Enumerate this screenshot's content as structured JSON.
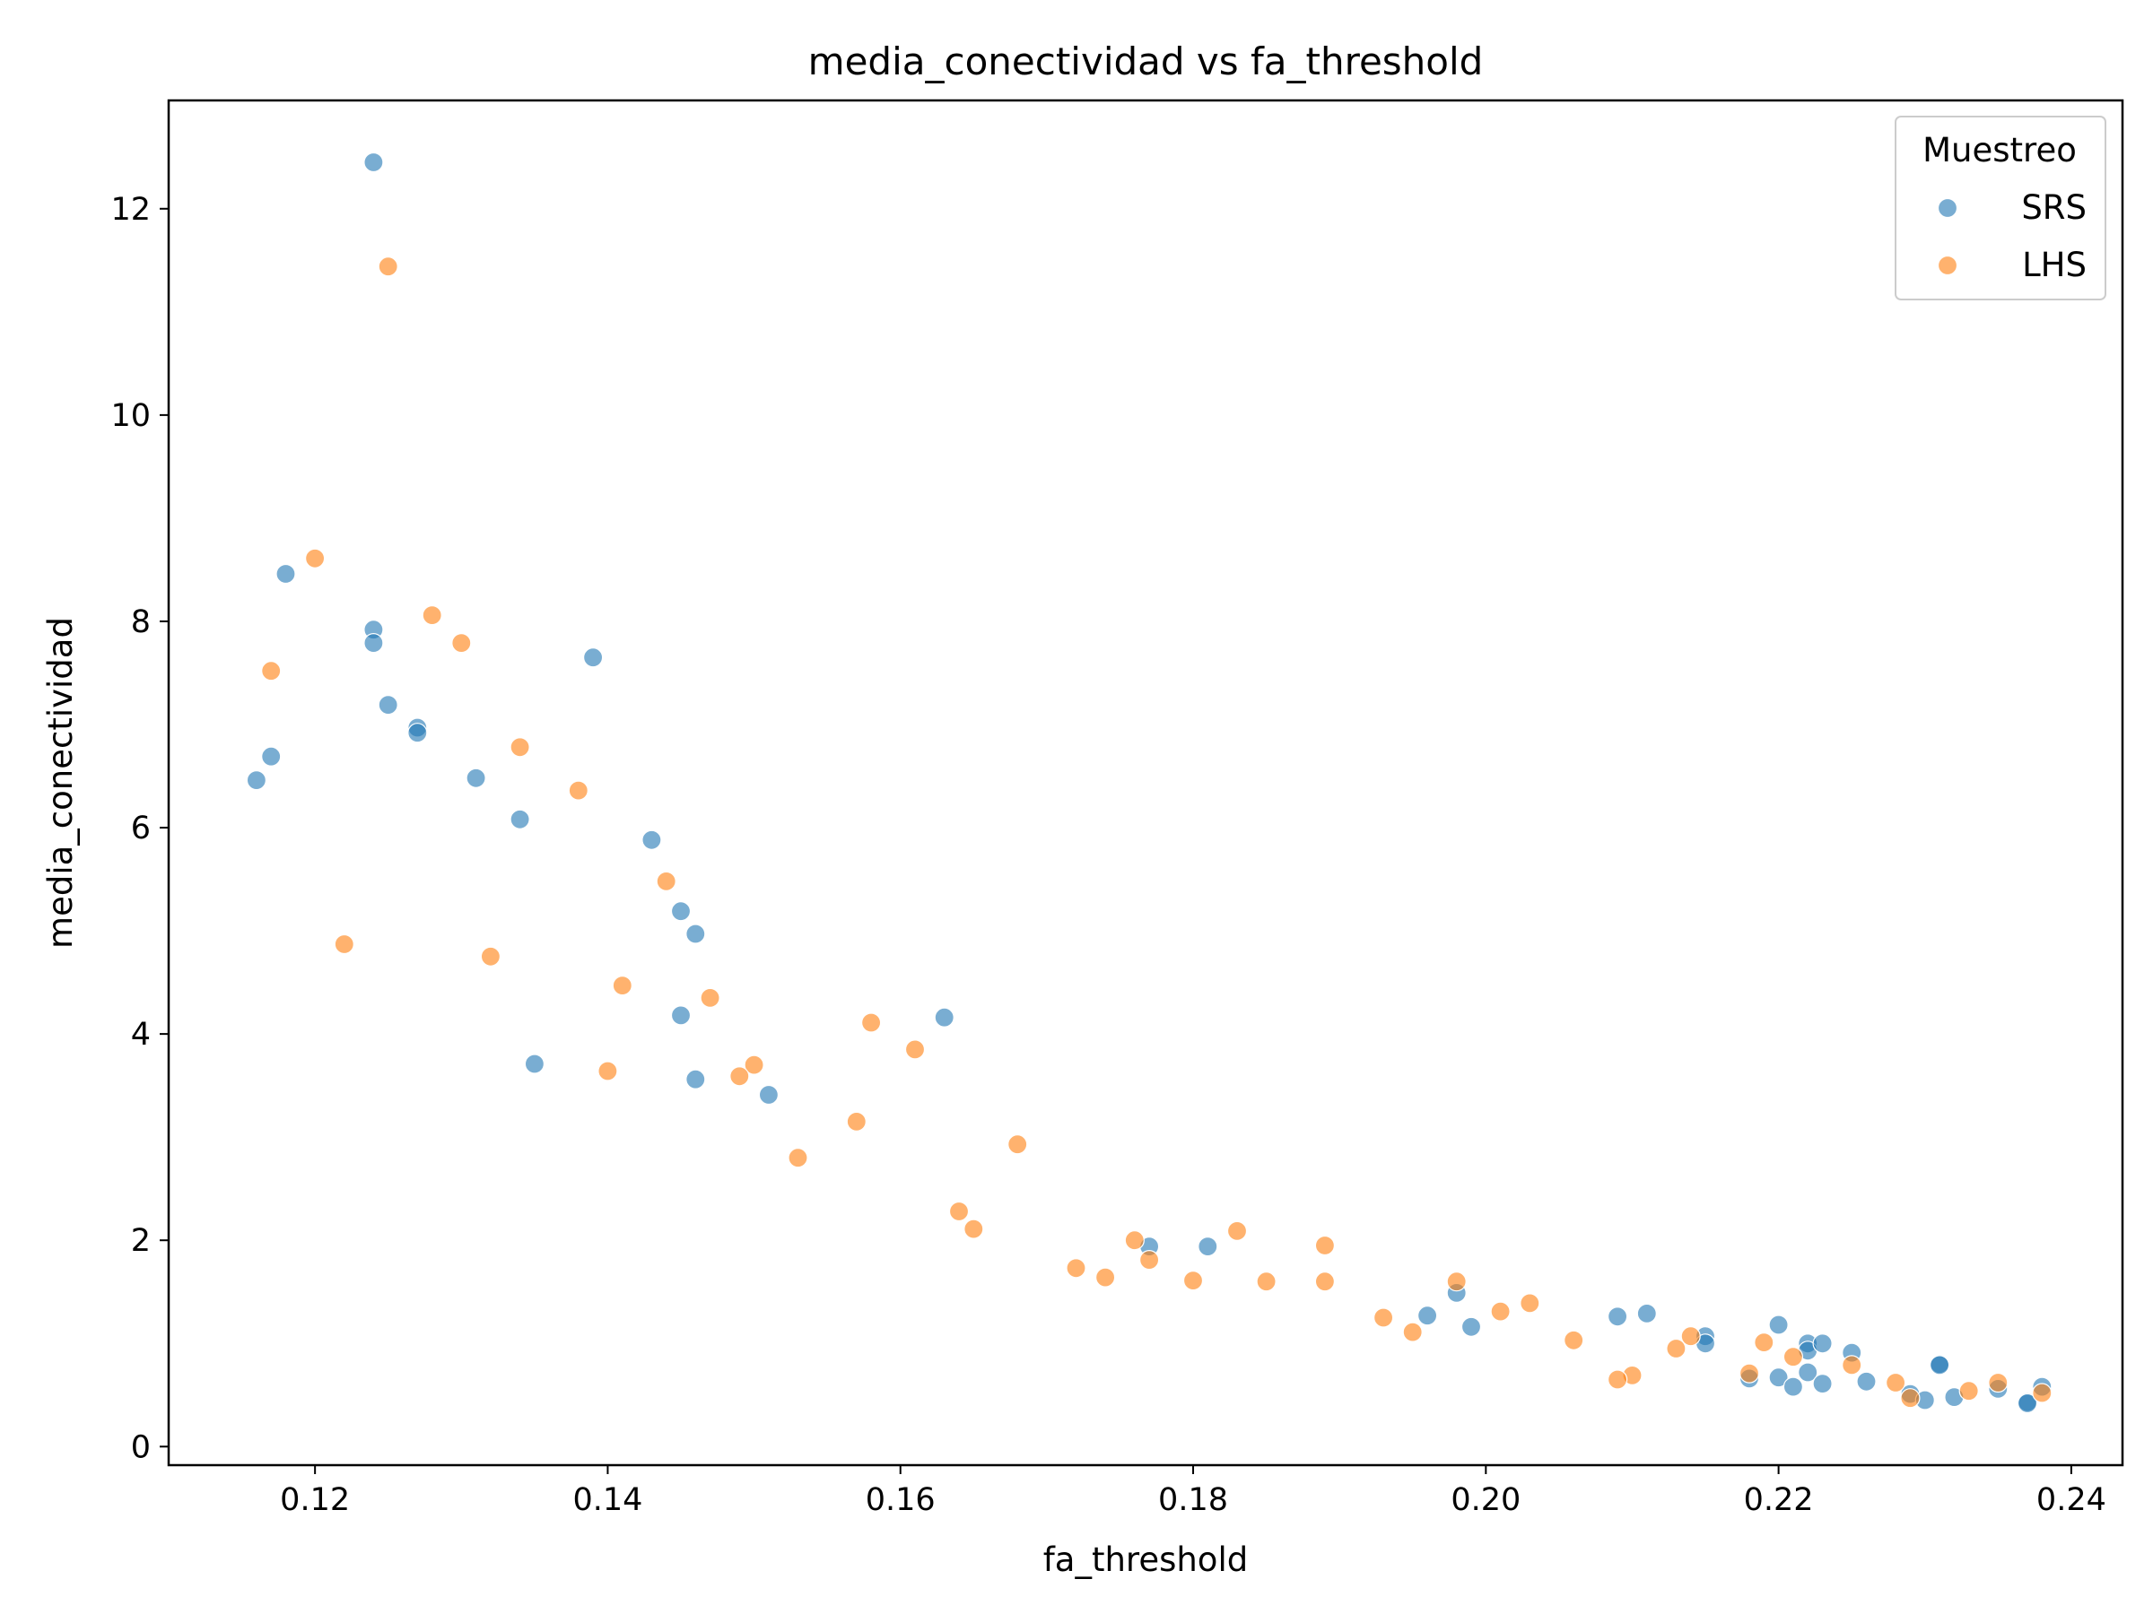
{
  "chart_data": {
    "type": "scatter",
    "title": "media_conectividad vs fa_threshold",
    "xlabel": "fa_threshold",
    "ylabel": "media_conectividad",
    "xlim": [
      0.11,
      0.2435
    ],
    "ylim": [
      -0.18,
      13.05
    ],
    "x_ticks": [
      0.12,
      0.14,
      0.16,
      0.18,
      0.2,
      0.22,
      0.24
    ],
    "x_tick_labels": [
      "0.12",
      "0.14",
      "0.16",
      "0.18",
      "0.20",
      "0.22",
      "0.24"
    ],
    "y_ticks": [
      0,
      2,
      4,
      6,
      8,
      10,
      12
    ],
    "y_tick_labels": [
      "0",
      "2",
      "4",
      "6",
      "8",
      "10",
      "12"
    ],
    "grid": false,
    "legend": {
      "title": "Muestreo",
      "placement": "top-right"
    },
    "series": [
      {
        "name": "SRS",
        "color": "#1f77b4",
        "points": [
          [
            0.124,
            12.45
          ],
          [
            0.118,
            8.46
          ],
          [
            0.124,
            7.92
          ],
          [
            0.124,
            7.79
          ],
          [
            0.139,
            7.65
          ],
          [
            0.125,
            7.19
          ],
          [
            0.127,
            6.97
          ],
          [
            0.127,
            6.92
          ],
          [
            0.117,
            6.69
          ],
          [
            0.131,
            6.48
          ],
          [
            0.116,
            6.46
          ],
          [
            0.134,
            6.08
          ],
          [
            0.143,
            5.88
          ],
          [
            0.145,
            5.19
          ],
          [
            0.146,
            4.97
          ],
          [
            0.145,
            4.18
          ],
          [
            0.163,
            4.16
          ],
          [
            0.135,
            3.71
          ],
          [
            0.146,
            3.56
          ],
          [
            0.151,
            3.41
          ],
          [
            0.177,
            1.94
          ],
          [
            0.181,
            1.94
          ],
          [
            0.198,
            1.49
          ],
          [
            0.196,
            1.27
          ],
          [
            0.199,
            1.16
          ],
          [
            0.209,
            1.26
          ],
          [
            0.211,
            1.29
          ],
          [
            0.215,
            1.07
          ],
          [
            0.215,
            1.0
          ],
          [
            0.22,
            1.18
          ],
          [
            0.222,
            1.0
          ],
          [
            0.222,
            0.93
          ],
          [
            0.223,
            1.0
          ],
          [
            0.225,
            0.91
          ],
          [
            0.218,
            0.66
          ],
          [
            0.22,
            0.67
          ],
          [
            0.221,
            0.58
          ],
          [
            0.222,
            0.72
          ],
          [
            0.223,
            0.61
          ],
          [
            0.226,
            0.63
          ],
          [
            0.229,
            0.51
          ],
          [
            0.23,
            0.45
          ],
          [
            0.231,
            0.8
          ],
          [
            0.231,
            0.79
          ],
          [
            0.232,
            0.48
          ],
          [
            0.235,
            0.56
          ],
          [
            0.237,
            0.43
          ],
          [
            0.237,
            0.42
          ],
          [
            0.238,
            0.58
          ]
        ]
      },
      {
        "name": "LHS",
        "color": "#ff7f0e",
        "points": [
          [
            0.125,
            11.44
          ],
          [
            0.12,
            8.61
          ],
          [
            0.128,
            8.06
          ],
          [
            0.13,
            7.79
          ],
          [
            0.117,
            7.52
          ],
          [
            0.134,
            6.78
          ],
          [
            0.138,
            6.36
          ],
          [
            0.144,
            5.48
          ],
          [
            0.122,
            4.87
          ],
          [
            0.132,
            4.75
          ],
          [
            0.141,
            4.47
          ],
          [
            0.147,
            4.35
          ],
          [
            0.158,
            4.11
          ],
          [
            0.161,
            3.85
          ],
          [
            0.15,
            3.7
          ],
          [
            0.14,
            3.64
          ],
          [
            0.149,
            3.59
          ],
          [
            0.157,
            3.15
          ],
          [
            0.168,
            2.93
          ],
          [
            0.153,
            2.8
          ],
          [
            0.164,
            2.28
          ],
          [
            0.165,
            2.11
          ],
          [
            0.183,
            2.09
          ],
          [
            0.176,
            2.0
          ],
          [
            0.189,
            1.95
          ],
          [
            0.177,
            1.81
          ],
          [
            0.172,
            1.73
          ],
          [
            0.174,
            1.64
          ],
          [
            0.18,
            1.61
          ],
          [
            0.185,
            1.6
          ],
          [
            0.189,
            1.6
          ],
          [
            0.198,
            1.6
          ],
          [
            0.203,
            1.39
          ],
          [
            0.201,
            1.31
          ],
          [
            0.193,
            1.25
          ],
          [
            0.195,
            1.11
          ],
          [
            0.206,
            1.03
          ],
          [
            0.214,
            1.07
          ],
          [
            0.219,
            1.01
          ],
          [
            0.213,
            0.95
          ],
          [
            0.221,
            0.87
          ],
          [
            0.225,
            0.79
          ],
          [
            0.218,
            0.71
          ],
          [
            0.21,
            0.69
          ],
          [
            0.209,
            0.65
          ],
          [
            0.228,
            0.62
          ],
          [
            0.235,
            0.62
          ],
          [
            0.233,
            0.54
          ],
          [
            0.238,
            0.52
          ],
          [
            0.229,
            0.47
          ]
        ]
      }
    ]
  }
}
